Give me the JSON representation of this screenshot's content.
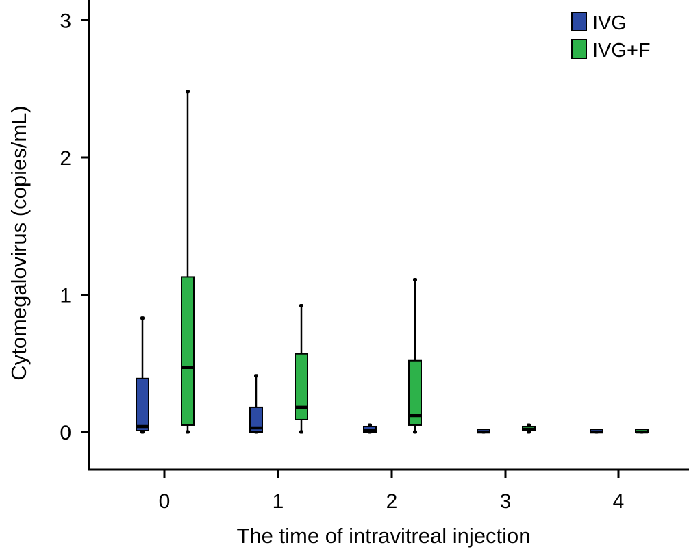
{
  "chart_data": {
    "type": "boxplot",
    "xlabel": "The time of intravitreal injection",
    "ylabel": "Cytomegalovirus (copies/mL)",
    "ylim": [
      -0.27,
      3.15
    ],
    "yticks": [
      "0",
      "1",
      "2",
      "3"
    ],
    "categories": [
      "0",
      "1",
      "2",
      "3",
      "4"
    ],
    "legend_position": "top-right",
    "grid": false,
    "series": [
      {
        "name": "IVG",
        "color": "#2c4aa3",
        "boxes": [
          {
            "min": 0.0,
            "q1": 0.01,
            "median": 0.04,
            "q3": 0.39,
            "max": 0.83
          },
          {
            "min": 0.0,
            "q1": 0.0,
            "median": 0.03,
            "q3": 0.18,
            "max": 0.41
          },
          {
            "min": 0.0,
            "q1": 0.0,
            "median": 0.01,
            "q3": 0.04,
            "max": 0.05
          },
          {
            "min": 0.0,
            "q1": 0.0,
            "median": 0.0,
            "q3": 0.01,
            "max": 0.01
          },
          {
            "min": 0.0,
            "q1": 0.0,
            "median": 0.0,
            "q3": 0.0,
            "max": 0.0
          }
        ]
      },
      {
        "name": "IVG+F",
        "color": "#2db24a",
        "boxes": [
          {
            "min": 0.0,
            "q1": 0.05,
            "median": 0.47,
            "q3": 1.13,
            "max": 2.48
          },
          {
            "min": 0.0,
            "q1": 0.09,
            "median": 0.18,
            "q3": 0.57,
            "max": 0.92
          },
          {
            "min": 0.0,
            "q1": 0.05,
            "median": 0.12,
            "q3": 0.52,
            "max": 1.11
          },
          {
            "min": 0.0,
            "q1": 0.01,
            "median": 0.02,
            "q3": 0.04,
            "max": 0.05
          },
          {
            "min": 0.0,
            "q1": 0.0,
            "median": 0.0,
            "q3": 0.0,
            "max": 0.0
          }
        ]
      }
    ]
  }
}
